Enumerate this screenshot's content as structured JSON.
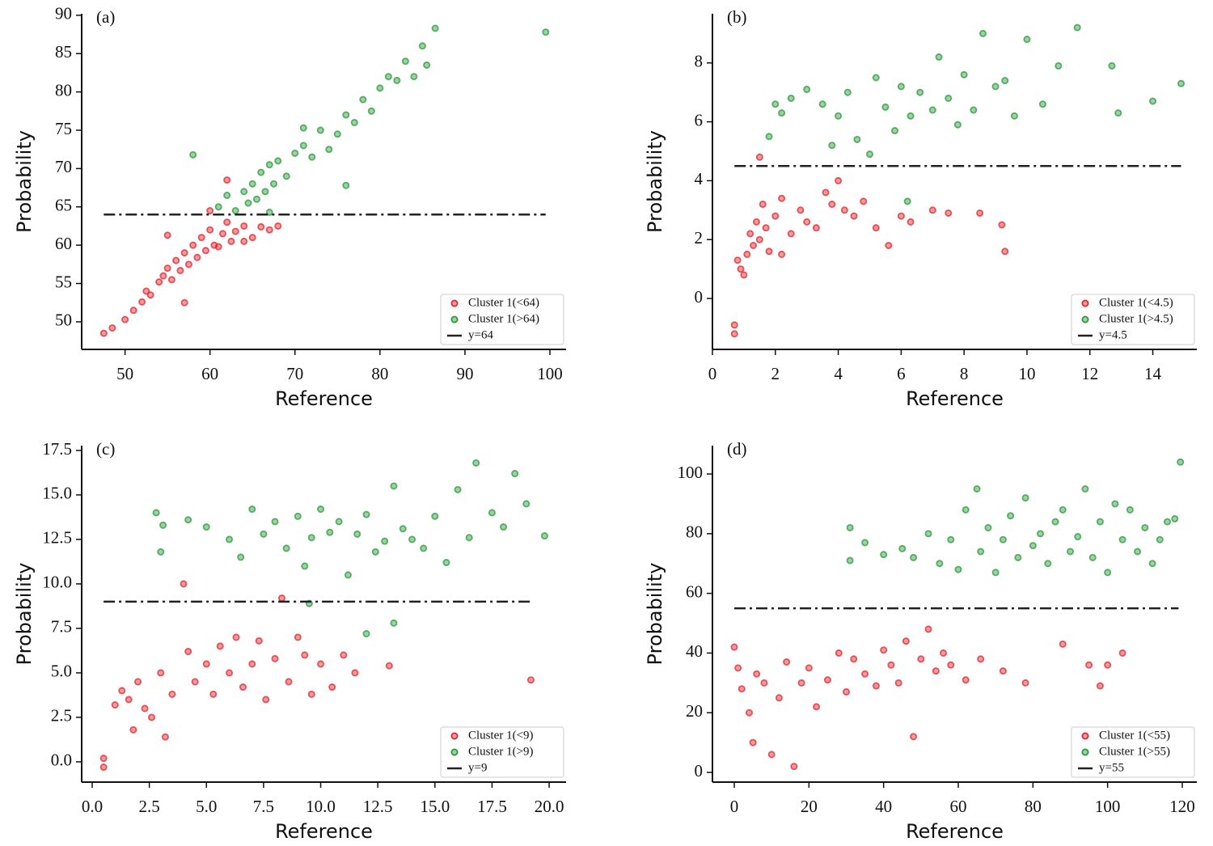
{
  "chart_data": [
    {
      "type": "scatter",
      "title": "(a)",
      "xlabel": "Reference",
      "ylabel": "Probability",
      "legend": "lower right",
      "xlim": [
        44.9,
        101.9
      ],
      "ylim": [
        46.4,
        90.2
      ],
      "xticks": [
        50,
        60,
        70,
        80,
        90,
        100
      ],
      "yticks": [
        50,
        55,
        60,
        65,
        70,
        75,
        80,
        85,
        90
      ],
      "series": [
        {
          "name": "Cluster 1(<64)",
          "color": "#e3242b",
          "x": [
            47.5,
            48.5,
            50,
            51,
            52,
            52.5,
            53,
            54,
            54.5,
            55,
            55.5,
            56,
            56.5,
            57,
            57.5,
            58,
            58.5,
            59,
            59.5,
            60,
            60.5,
            61,
            61.5,
            62,
            62.5,
            63,
            64,
            65,
            66,
            67,
            68,
            57,
            55,
            60,
            62,
            64
          ],
          "values": [
            48.5,
            49.2,
            50.3,
            51.5,
            52.6,
            54,
            53.5,
            55.2,
            56,
            57,
            55.5,
            58,
            56.7,
            59,
            57.5,
            60,
            58.4,
            61,
            59.3,
            62,
            60,
            59.8,
            61.5,
            63,
            60.5,
            61.8,
            62.5,
            61,
            62.4,
            62,
            62.5,
            52.5,
            61.3,
            64.5,
            68.5,
            60.5
          ]
        },
        {
          "name": "Cluster 1(>64)",
          "color": "#2a9a3a",
          "x": [
            58,
            61,
            62,
            63,
            64,
            64.5,
            65,
            65.5,
            66,
            66.5,
            67,
            67.5,
            68,
            69,
            70,
            71,
            72,
            73,
            74,
            75,
            76,
            77,
            78,
            79,
            80,
            81,
            82,
            83,
            84,
            85,
            85.5,
            86.5,
            99.5,
            71,
            76,
            67
          ],
          "values": [
            71.8,
            65,
            66.5,
            64.5,
            67,
            65.5,
            68,
            66,
            69.5,
            67,
            70.5,
            68,
            71,
            69,
            72,
            73,
            71.5,
            75,
            72.5,
            74.5,
            77,
            76,
            79,
            77.5,
            80.5,
            82,
            81.5,
            84,
            82,
            86,
            83.5,
            88.3,
            87.8,
            75.3,
            67.8,
            64.3
          ]
        },
        {
          "name": "y=64",
          "color": "#222222",
          "style": "dashdot",
          "x": [
            47.5,
            99.5
          ],
          "values": [
            64,
            64
          ]
        }
      ]
    },
    {
      "type": "scatter",
      "title": "(b)",
      "xlabel": "Reference",
      "ylabel": "Probability",
      "legend": "lower right",
      "xlim": [
        0,
        15.4
      ],
      "ylim": [
        -1.73,
        9.67
      ],
      "xticks": [
        0,
        2,
        4,
        6,
        8,
        10,
        12,
        14
      ],
      "yticks": [
        0,
        2,
        4,
        6,
        8
      ],
      "series": [
        {
          "name": "Cluster 1(<4.5)",
          "color": "#e3242b",
          "x": [
            0.7,
            0.7,
            0.8,
            0.9,
            1,
            1.1,
            1.2,
            1.3,
            1.4,
            1.5,
            1.6,
            1.7,
            1.8,
            2,
            2.2,
            2.5,
            2.8,
            3,
            3.3,
            3.6,
            3.8,
            4,
            4.2,
            4.5,
            4.8,
            5.2,
            5.6,
            6,
            6.3,
            7,
            7.5,
            8.5,
            9.2,
            9.3,
            1.5,
            2.2
          ],
          "values": [
            -1.2,
            -0.9,
            1.3,
            1,
            0.8,
            1.5,
            2.2,
            1.8,
            2.6,
            2,
            3.2,
            2.4,
            1.6,
            2.8,
            3.4,
            2.2,
            3,
            2.6,
            2.4,
            3.6,
            3.2,
            4,
            3,
            2.8,
            3.3,
            2.4,
            1.8,
            2.8,
            2.6,
            3,
            2.9,
            2.9,
            2.5,
            1.6,
            4.8,
            1.5
          ]
        },
        {
          "name": "Cluster 1(>4.5)",
          "color": "#2a9a3a",
          "x": [
            1.8,
            2,
            2.2,
            2.5,
            3,
            3.5,
            3.8,
            4,
            4.3,
            4.6,
            5,
            5.2,
            5.5,
            5.8,
            6,
            6.3,
            6.6,
            7,
            7.2,
            7.5,
            7.8,
            8,
            8.3,
            8.6,
            9,
            9.3,
            9.6,
            10,
            10.5,
            11,
            11.6,
            12.7,
            12.9,
            14,
            14.9,
            6.2
          ],
          "values": [
            5.5,
            6.6,
            6.3,
            6.8,
            7.1,
            6.6,
            5.2,
            6.2,
            7,
            5.4,
            4.9,
            7.5,
            6.5,
            5.7,
            7.2,
            6.2,
            7,
            6.4,
            8.2,
            6.8,
            5.9,
            7.6,
            6.4,
            9,
            7.2,
            7.4,
            6.2,
            8.8,
            6.6,
            7.9,
            9.2,
            7.9,
            6.3,
            6.7,
            7.3,
            3.3
          ]
        },
        {
          "name": "y=4.5",
          "color": "#222222",
          "style": "dashdot",
          "x": [
            0.7,
            14.9
          ],
          "values": [
            4.5,
            4.5
          ]
        }
      ]
    },
    {
      "type": "scatter",
      "title": "(c)",
      "xlabel": "Reference",
      "ylabel": "Probability",
      "legend": "lower right",
      "xlim": [
        -0.46,
        20.74
      ],
      "ylim": [
        -1.14,
        17.77
      ],
      "xticks": [
        {
          "value": 0,
          "label": "0.0"
        },
        2.5,
        {
          "value": 5,
          "label": "5.0"
        },
        7.5,
        {
          "value": 10,
          "label": "10.0"
        },
        12.5,
        {
          "value": 15,
          "label": "15.0"
        },
        17.5,
        {
          "value": 20,
          "label": "20.0"
        }
      ],
      "yticks": [
        {
          "value": 0,
          "label": "0.0"
        },
        2.5,
        {
          "value": 5,
          "label": "5.0"
        },
        7.5,
        {
          "value": 10,
          "label": "10.0"
        },
        12.5,
        {
          "value": 15,
          "label": "15.0"
        },
        17.5
      ],
      "series": [
        {
          "name": "Cluster 1(<9)",
          "color": "#e3242b",
          "x": [
            0.5,
            0.5,
            1,
            1.3,
            1.6,
            1.8,
            2,
            2.3,
            2.6,
            3,
            3.2,
            3.5,
            4,
            4.2,
            4.5,
            5,
            5.3,
            5.6,
            6,
            6.3,
            6.6,
            7,
            7.3,
            7.6,
            8,
            8.3,
            8.6,
            9,
            9.3,
            9.6,
            10,
            10.5,
            11,
            11.5,
            13,
            19.2
          ],
          "values": [
            -0.3,
            0.2,
            3.2,
            4,
            3.5,
            1.8,
            4.5,
            3,
            2.5,
            5,
            1.4,
            3.8,
            10,
            6.2,
            4.5,
            5.5,
            3.8,
            6.5,
            5,
            7,
            4.2,
            5.5,
            6.8,
            3.5,
            5.8,
            9.2,
            4.5,
            7,
            6,
            3.8,
            5.5,
            4.2,
            6,
            5,
            5.4,
            4.6
          ]
        },
        {
          "name": "Cluster 1(>9)",
          "color": "#2a9a3a",
          "x": [
            2.8,
            3,
            3.1,
            4.2,
            5,
            6,
            6.5,
            7,
            7.5,
            8,
            8.5,
            9,
            9.3,
            9.6,
            10,
            10.4,
            10.8,
            11.2,
            11.6,
            12,
            12.4,
            12.8,
            13.2,
            13.6,
            14,
            14.5,
            15,
            15.5,
            16,
            16.5,
            16.8,
            17.5,
            18,
            18.5,
            19,
            19.8,
            12,
            13.2,
            9.5
          ],
          "values": [
            14,
            11.8,
            13.3,
            13.6,
            13.2,
            12.5,
            11.5,
            14.2,
            12.8,
            13.5,
            12,
            13.8,
            11,
            12.6,
            14.2,
            12.9,
            13.5,
            10.5,
            12.8,
            13.9,
            11.8,
            12.4,
            15.5,
            13.1,
            12.5,
            12,
            13.8,
            11.2,
            15.3,
            12.6,
            16.8,
            14,
            13.2,
            16.2,
            14.5,
            12.7,
            7.2,
            7.8,
            8.9
          ]
        },
        {
          "name": "y=9",
          "color": "#222222",
          "style": "dashdot",
          "x": [
            0.5,
            19.2
          ],
          "values": [
            9,
            9
          ]
        }
      ]
    },
    {
      "type": "scatter",
      "title": "(d)",
      "xlabel": "Reference",
      "ylabel": "Probability",
      "legend": "lower right",
      "xlim": [
        -5.85,
        123.9
      ],
      "ylim": [
        -3.25,
        109.5
      ],
      "xticks": [
        0,
        20,
        40,
        60,
        80,
        100,
        120
      ],
      "yticks": [
        0,
        20,
        40,
        60,
        80,
        100
      ],
      "series": [
        {
          "name": "Cluster 1(<55)",
          "color": "#e3242b",
          "x": [
            0,
            1,
            2,
            4,
            5,
            6,
            8,
            10,
            12,
            14,
            16,
            18,
            20,
            22,
            25,
            28,
            30,
            32,
            35,
            38,
            40,
            42,
            44,
            46,
            48,
            50,
            52,
            54,
            56,
            58,
            62,
            66,
            72,
            78,
            88,
            95,
            98,
            100,
            104
          ],
          "values": [
            42,
            35,
            28,
            20,
            10,
            33,
            30,
            6,
            25,
            37,
            2,
            30,
            35,
            22,
            31,
            40,
            27,
            38,
            33,
            29,
            41,
            36,
            30,
            44,
            12,
            38,
            48,
            34,
            40,
            36,
            31,
            38,
            34,
            30,
            43,
            36,
            29,
            36,
            40
          ]
        },
        {
          "name": "Cluster 1(>55)",
          "color": "#2a9a3a",
          "x": [
            31,
            31,
            35,
            40,
            45,
            48,
            52,
            55,
            58,
            60,
            62,
            65,
            66,
            68,
            70,
            72,
            74,
            76,
            78,
            80,
            82,
            84,
            86,
            88,
            90,
            92,
            94,
            96,
            98,
            100,
            102,
            104,
            106,
            108,
            110,
            112,
            114,
            116,
            118,
            119.5
          ],
          "values": [
            82,
            71,
            77,
            73,
            75,
            72,
            80,
            70,
            78,
            68,
            88,
            95,
            74,
            82,
            67,
            78,
            86,
            72,
            92,
            76,
            80,
            70,
            84,
            88,
            74,
            79,
            95,
            72,
            84,
            67,
            90,
            78,
            88,
            74,
            82,
            70,
            78,
            84,
            85,
            104
          ]
        },
        {
          "name": "y=55",
          "color": "#222222",
          "style": "dashdot",
          "x": [
            0,
            119
          ],
          "values": [
            55,
            55
          ]
        }
      ]
    }
  ]
}
